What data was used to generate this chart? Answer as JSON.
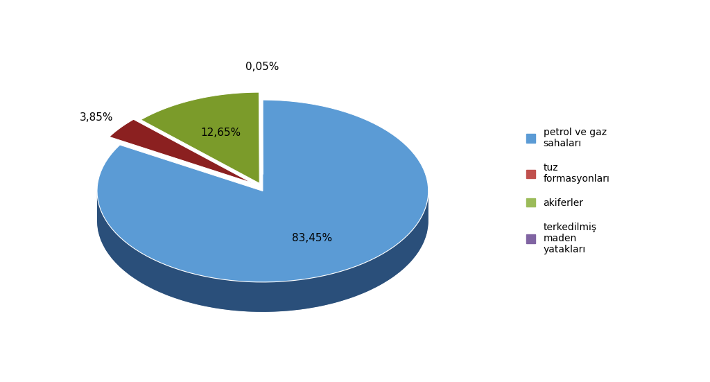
{
  "values": [
    83.45,
    3.85,
    12.65,
    0.05
  ],
  "colors": [
    "#5B9BD5",
    "#8B2020",
    "#7B9B2A",
    "#E0E0E0"
  ],
  "side_colors": [
    "#2A4F7A",
    "#5C1010",
    "#4A6010",
    "#A0A0A0"
  ],
  "pct_labels": [
    "83,45%",
    "3,85%",
    "12,65%",
    "0,05%"
  ],
  "legend_labels": [
    "petrol ve gaz\nsahaları",
    "tuz\nformasyonları",
    "akiferler",
    "terkedilmiş\nmaden\nyatakları"
  ],
  "legend_colors": [
    "#5B9BD5",
    "#C0504D",
    "#9BBB59",
    "#8064A2"
  ],
  "background_color": "#FFFFFF",
  "fig_width": 10.24,
  "fig_height": 5.51,
  "startangle": 90,
  "explode": [
    0.0,
    0.08,
    0.05,
    0.1
  ]
}
